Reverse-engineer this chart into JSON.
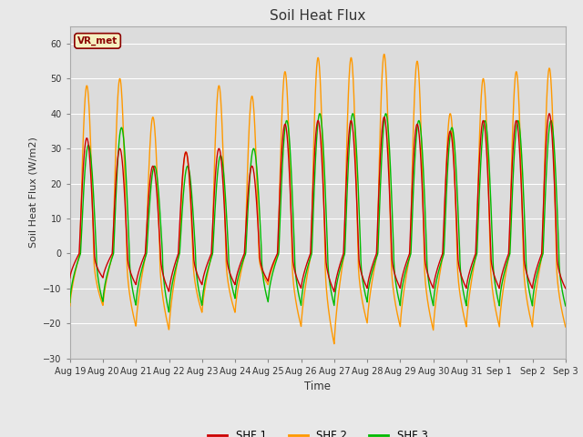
{
  "title": "Soil Heat Flux",
  "ylabel": "Soil Heat Flux (W/m2)",
  "xlabel": "Time",
  "ylim": [
    -30,
    65
  ],
  "yticks": [
    -30,
    -20,
    -10,
    0,
    10,
    20,
    30,
    40,
    50,
    60
  ],
  "fig_bg_color": "#e8e8e8",
  "plot_bg_color": "#dcdcdc",
  "shf1_color": "#cc0000",
  "shf2_color": "#ff9900",
  "shf3_color": "#00bb00",
  "legend_label1": "SHF 1",
  "legend_label2": "SHF 2",
  "legend_label3": "SHF 3",
  "watermark": "VR_met",
  "shf2_day_peaks": [
    48,
    50,
    39,
    29,
    48,
    45,
    52,
    56,
    56,
    57,
    55,
    40,
    50,
    52,
    53
  ],
  "shf2_night_min": [
    -15,
    -21,
    -22,
    -17,
    -17,
    -9,
    -21,
    -26,
    -20,
    -21,
    -22,
    -21,
    -21,
    -21,
    -21
  ],
  "shf1_day_peaks": [
    33,
    30,
    25,
    29,
    30,
    25,
    37,
    38,
    38,
    39,
    37,
    35,
    38,
    38,
    40
  ],
  "shf1_night_min": [
    -7,
    -9,
    -11,
    -9,
    -9,
    -8,
    -10,
    -11,
    -10,
    -10,
    -10,
    -10,
    -10,
    -10,
    -10
  ],
  "shf3_day_peaks": [
    31,
    36,
    25,
    25,
    28,
    30,
    38,
    40,
    40,
    40,
    38,
    36,
    38,
    38,
    38
  ],
  "shf3_night_min": [
    -14,
    -15,
    -17,
    -15,
    -13,
    -14,
    -15,
    -15,
    -14,
    -15,
    -15,
    -15,
    -15,
    -15,
    -15
  ],
  "tick_labels": [
    "Aug 19",
    "Aug 20",
    "Aug 21",
    "Aug 22",
    "Aug 23",
    "Aug 24",
    "Aug 25",
    "Aug 26",
    "Aug 27",
    "Aug 28",
    "Aug 29",
    "Aug 30",
    "Aug 31",
    "Sep 1",
    "Sep 2",
    "Sep 3"
  ]
}
